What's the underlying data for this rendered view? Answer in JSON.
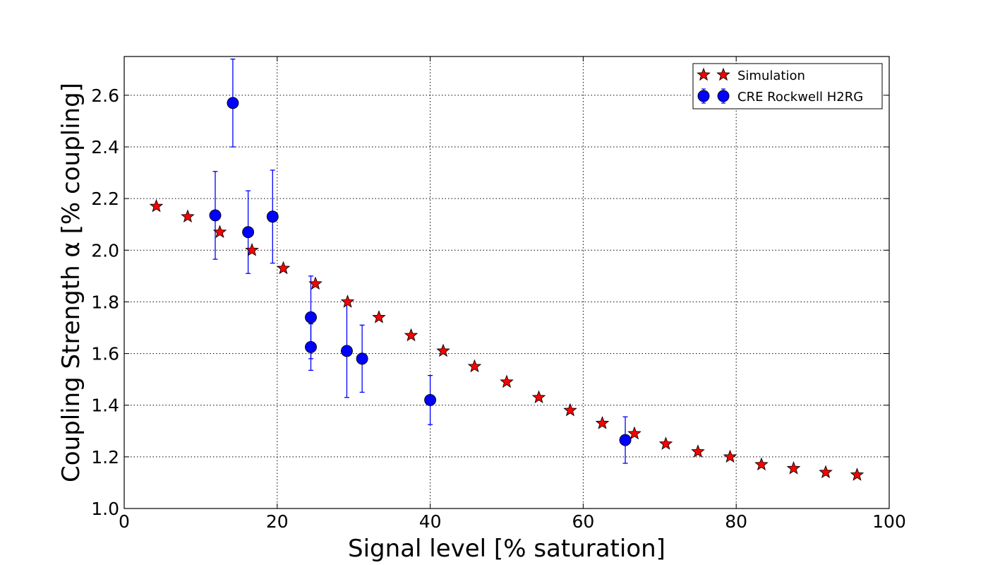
{
  "chart_data": {
    "type": "scatter",
    "xlabel": "Signal level [% saturation]",
    "ylabel": "Coupling Strength α [% coupling]",
    "xlim": [
      0,
      100
    ],
    "ylim": [
      1.0,
      2.75
    ],
    "xticks": [
      0,
      20,
      40,
      60,
      80,
      100
    ],
    "yticks": [
      1.0,
      1.2,
      1.4,
      1.6,
      1.8,
      2.0,
      2.2,
      2.4,
      2.6
    ],
    "xtick_labels": [
      "0",
      "20",
      "40",
      "60",
      "80",
      "100"
    ],
    "ytick_labels": [
      "1.0",
      "1.2",
      "1.4",
      "1.6",
      "1.8",
      "2.0",
      "2.2",
      "2.4",
      "2.6"
    ],
    "grid": true,
    "legend_position": "top-right",
    "series": [
      {
        "name": "Simulation",
        "marker": "star",
        "color": "#ff0000",
        "x": [
          4.2,
          8.3,
          12.5,
          16.7,
          20.8,
          25.0,
          29.2,
          33.3,
          37.5,
          41.7,
          45.8,
          50.0,
          54.2,
          58.3,
          62.5,
          66.7,
          70.8,
          75.0,
          79.2,
          83.3,
          87.5,
          91.7,
          95.8
        ],
        "y": [
          2.17,
          2.13,
          2.07,
          2.0,
          1.93,
          1.87,
          1.8,
          1.74,
          1.67,
          1.61,
          1.55,
          1.49,
          1.43,
          1.38,
          1.33,
          1.29,
          1.25,
          1.22,
          1.2,
          1.17,
          1.155,
          1.14,
          1.13
        ]
      },
      {
        "name": "CRE Rockwell H2RG",
        "marker": "circle",
        "color": "#0000ff",
        "x": [
          11.9,
          14.2,
          16.2,
          19.4,
          24.4,
          24.4,
          29.1,
          31.1,
          40.0,
          65.5
        ],
        "y": [
          2.135,
          2.57,
          2.07,
          2.13,
          1.74,
          1.625,
          1.61,
          1.58,
          1.42,
          1.265
        ],
        "yerr": [
          0.17,
          0.17,
          0.16,
          0.18,
          0.16,
          0.09,
          0.18,
          0.13,
          0.095,
          0.09
        ]
      }
    ]
  }
}
